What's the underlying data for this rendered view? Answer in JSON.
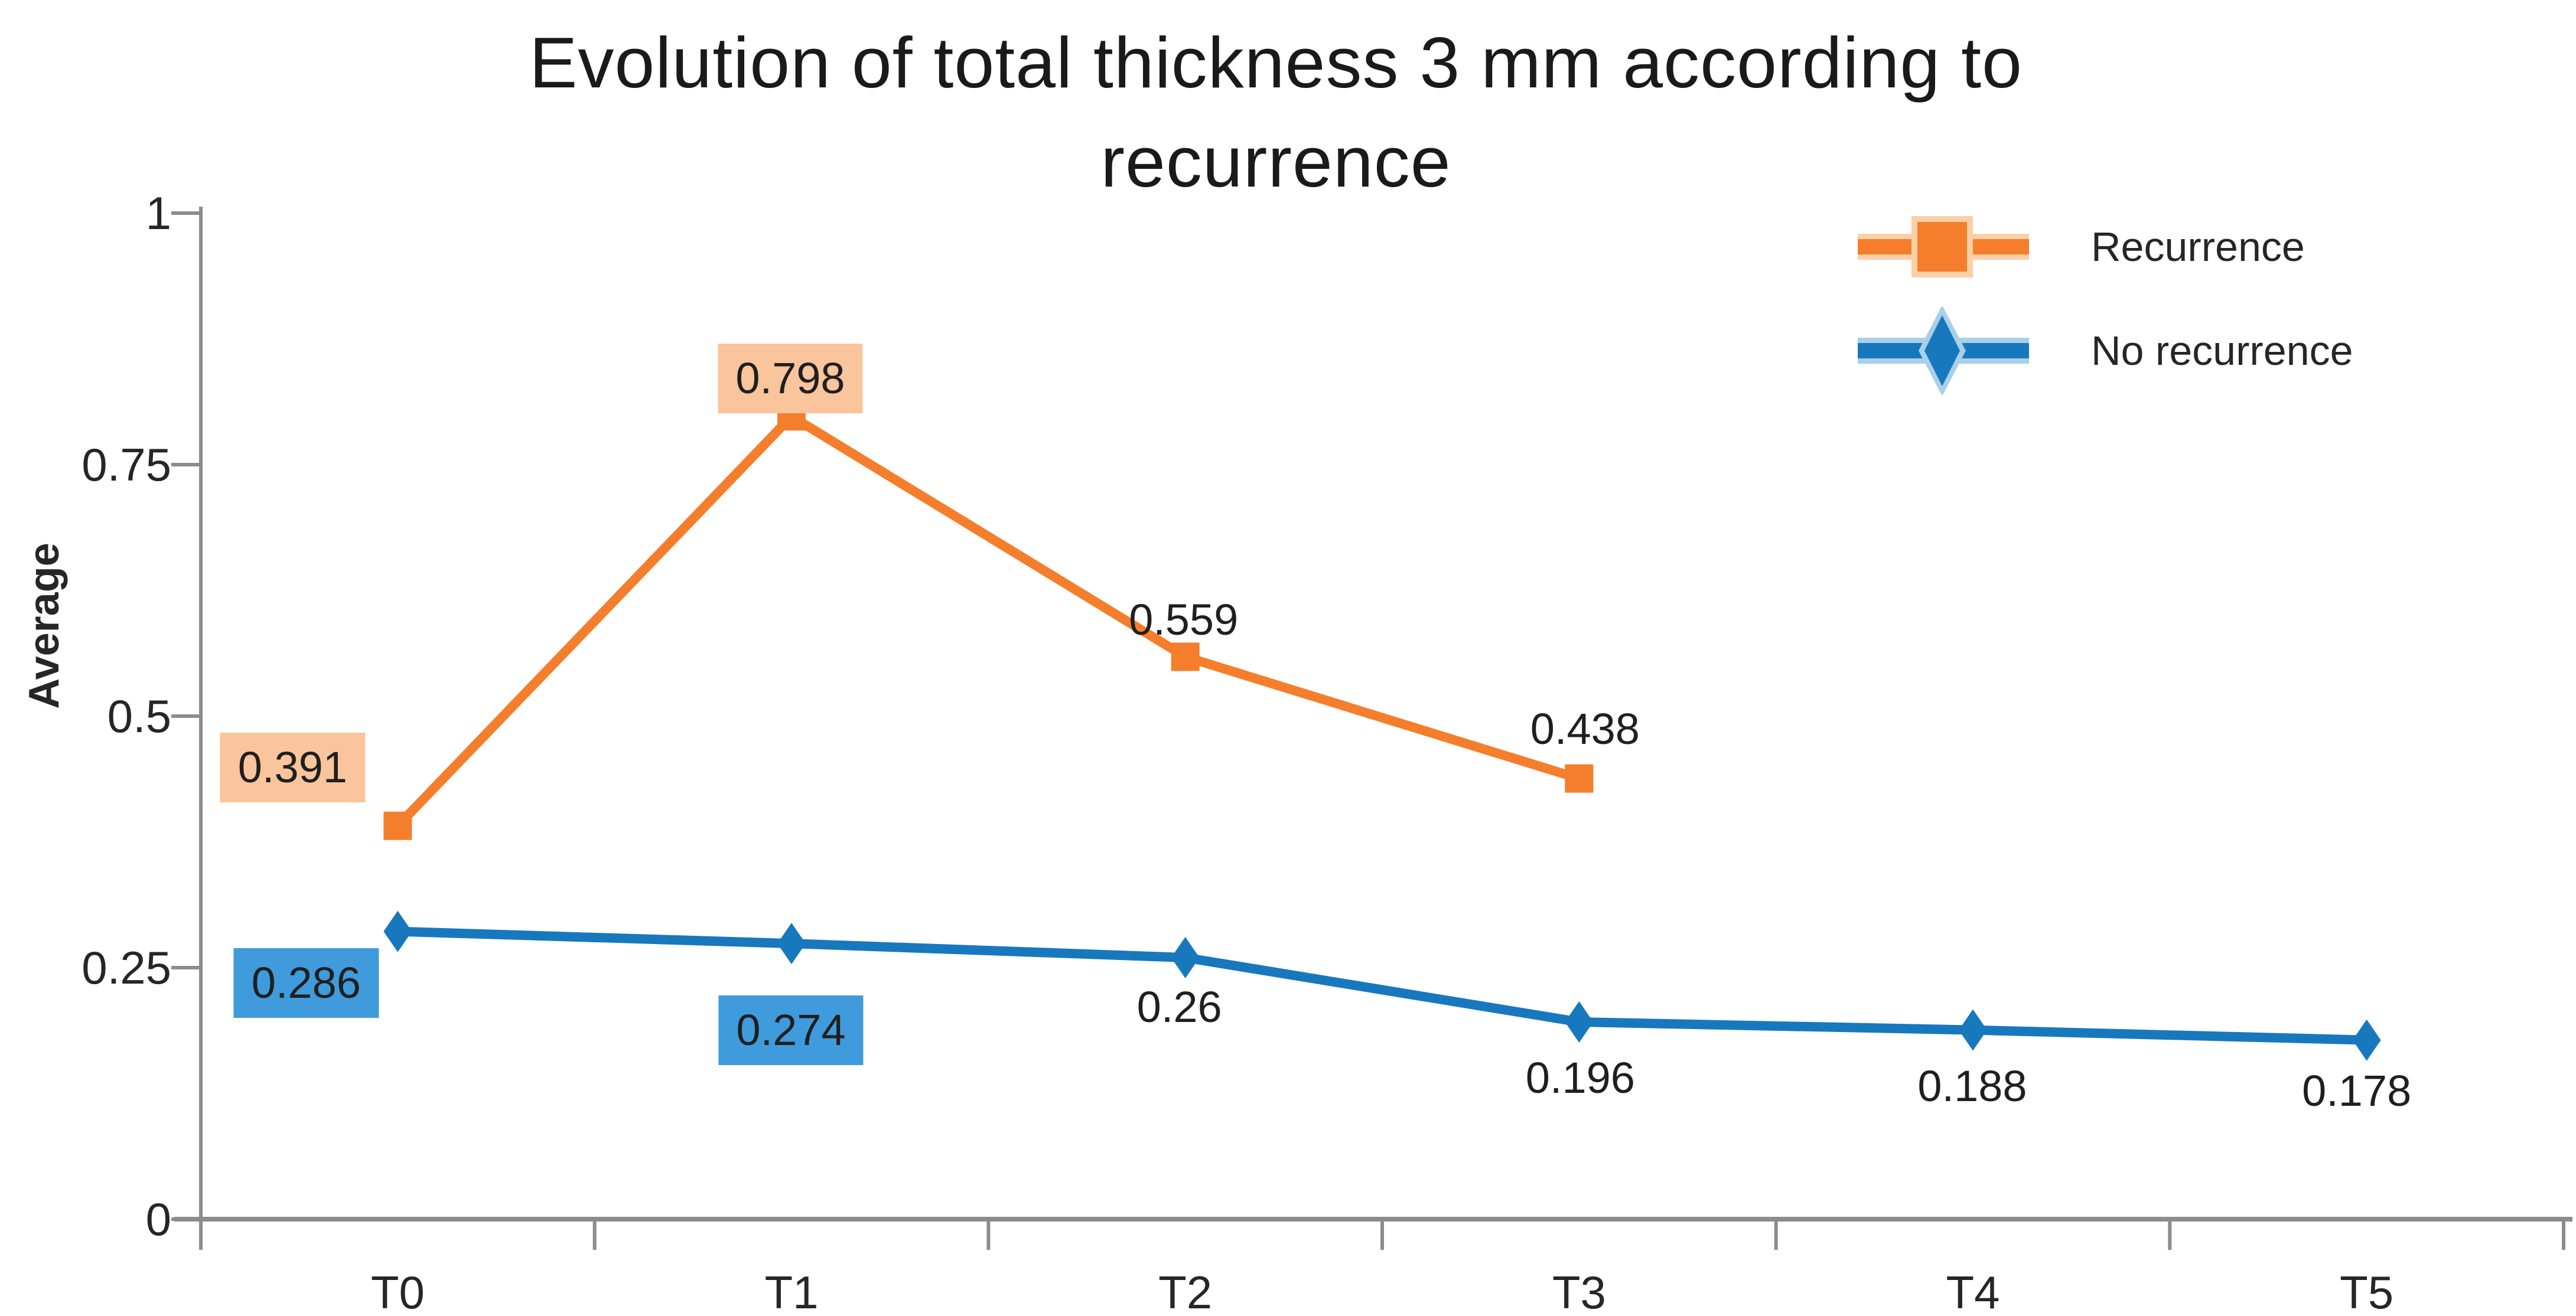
{
  "title": {
    "line1": "Evolution of total thickness 3 mm according to",
    "line2": "recurrence"
  },
  "y_axis": {
    "label": "Average",
    "ticks": [
      {
        "text": "1",
        "value": 1
      },
      {
        "text": "0.75",
        "value": 0.75
      },
      {
        "text": "0.5",
        "value": 0.5
      },
      {
        "text": "0.25",
        "value": 0.25
      },
      {
        "text": "0",
        "value": 0
      }
    ]
  },
  "x_axis": {
    "categories": [
      "T0",
      "T1",
      "T2",
      "T3",
      "T4",
      "T5"
    ]
  },
  "legend": {
    "items": [
      {
        "label": "Recurrence",
        "marker": "square",
        "color": "#F57E2C",
        "halo": "#FBD0A8"
      },
      {
        "label": "No recurrence",
        "marker": "diamond",
        "color": "#1878BE",
        "halo": "#A9CFE9"
      }
    ]
  },
  "colors": {
    "background": "#FFFFFF",
    "axis": "#8C8C8C",
    "text": "#1F1F1F",
    "orange": "#F57E2C",
    "orange_highlight": "#FAC49C",
    "blue": "#1878BE",
    "blue_highlight": "#3F9BDB"
  },
  "chart_data": {
    "type": "line",
    "title": "Evolution of total thickness 3 mm according to recurrence",
    "xlabel": "",
    "ylabel": "Average",
    "categories": [
      "T0",
      "T1",
      "T2",
      "T3",
      "T4",
      "T5"
    ],
    "ylim": [
      0,
      1
    ],
    "y_tick_interval": 0.25,
    "grid": false,
    "legend_position": "top-right",
    "series": [
      {
        "name": "Recurrence",
        "color": "#F57E2C",
        "marker": "square",
        "highlight_color": "#FAC49C",
        "values": [
          0.391,
          0.798,
          0.559,
          0.438,
          null,
          null
        ],
        "labels": [
          {
            "text": "0.391",
            "highlight": true,
            "dx": -178,
            "dy": -99
          },
          {
            "text": "0.798",
            "highlight": true,
            "dx": -2,
            "dy": -64
          },
          {
            "text": "0.559",
            "highlight": false,
            "dx": -3,
            "dy": -62
          },
          {
            "text": "0.438",
            "highlight": false,
            "dx": 10,
            "dy": -84
          },
          null,
          null
        ]
      },
      {
        "name": "No recurrence",
        "color": "#1878BE",
        "marker": "diamond",
        "highlight_color": "#3F9BDB",
        "values": [
          0.286,
          0.274,
          0.26,
          0.196,
          0.188,
          0.178
        ],
        "labels": [
          {
            "text": "0.286",
            "highlight": true,
            "dx": -155,
            "dy": 87
          },
          {
            "text": "0.274",
            "highlight": true,
            "dx": -1,
            "dy": 147
          },
          {
            "text": "0.26",
            "highlight": false,
            "dx": -10,
            "dy": 84
          },
          {
            "text": "0.196",
            "highlight": false,
            "dx": 2,
            "dy": 95
          },
          {
            "text": "0.188",
            "highlight": false,
            "dx": -1,
            "dy": 95
          },
          {
            "text": "0.178",
            "highlight": false,
            "dx": -17,
            "dy": 86
          }
        ]
      }
    ]
  }
}
